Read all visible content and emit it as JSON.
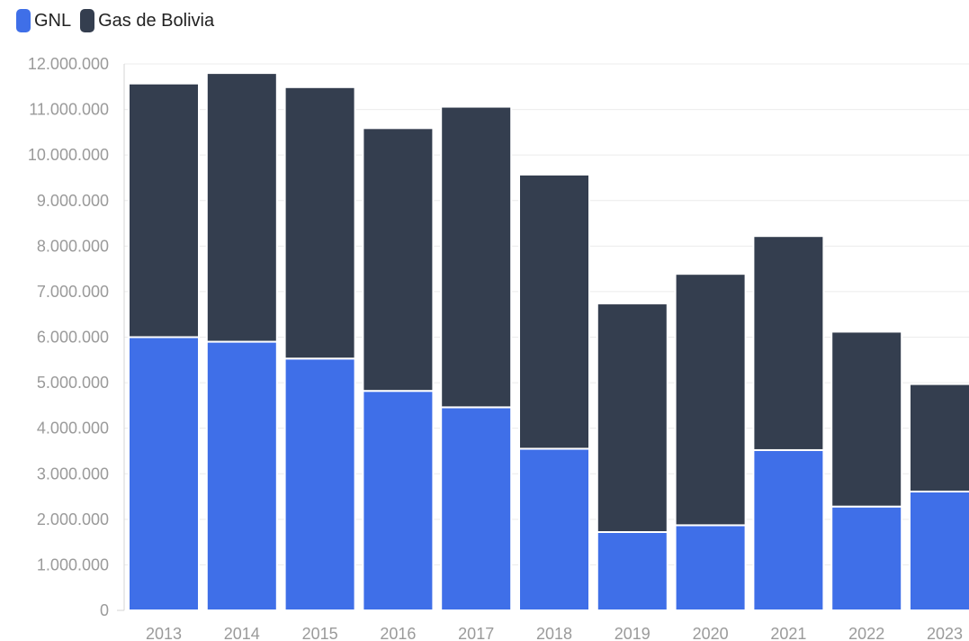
{
  "legend": {
    "items": [
      {
        "label": "GNL",
        "color": "#3f6fe8",
        "icon": "blue-square"
      },
      {
        "label": "Gas de Bolivia",
        "color": "#343e4f",
        "icon": "dark-square"
      }
    ]
  },
  "chart_data": {
    "type": "bar",
    "stacked": true,
    "categories": [
      "2013",
      "2014",
      "2015",
      "2016",
      "2017",
      "2018",
      "2019",
      "2020",
      "2021",
      "2022",
      "2023"
    ],
    "series": [
      {
        "name": "GNL",
        "color": "#3f6fe8",
        "values": [
          6000000,
          5900000,
          5530000,
          4820000,
          4460000,
          3550000,
          1720000,
          1870000,
          3520000,
          2280000,
          2610000
        ]
      },
      {
        "name": "Gas de Bolivia",
        "color": "#343e4f",
        "values": [
          5570000,
          5900000,
          5960000,
          5770000,
          6600000,
          6020000,
          5020000,
          5520000,
          4700000,
          3840000,
          2360000
        ]
      }
    ],
    "title": "",
    "xlabel": "",
    "ylabel": "",
    "ylim": [
      0,
      12000000
    ],
    "yticks": [
      0,
      1000000,
      2000000,
      3000000,
      4000000,
      5000000,
      6000000,
      7000000,
      8000000,
      9000000,
      10000000,
      11000000,
      12000000
    ],
    "ytick_labels": [
      "0",
      "1.000.000",
      "2.000.000",
      "3.000.000",
      "4.000.000",
      "5.000.000",
      "6.000.000",
      "7.000.000",
      "8.000.000",
      "9.000.000",
      "10.000.000",
      "11.000.000",
      "12.000.000"
    ],
    "grid": true,
    "legend_position": "top-left"
  }
}
